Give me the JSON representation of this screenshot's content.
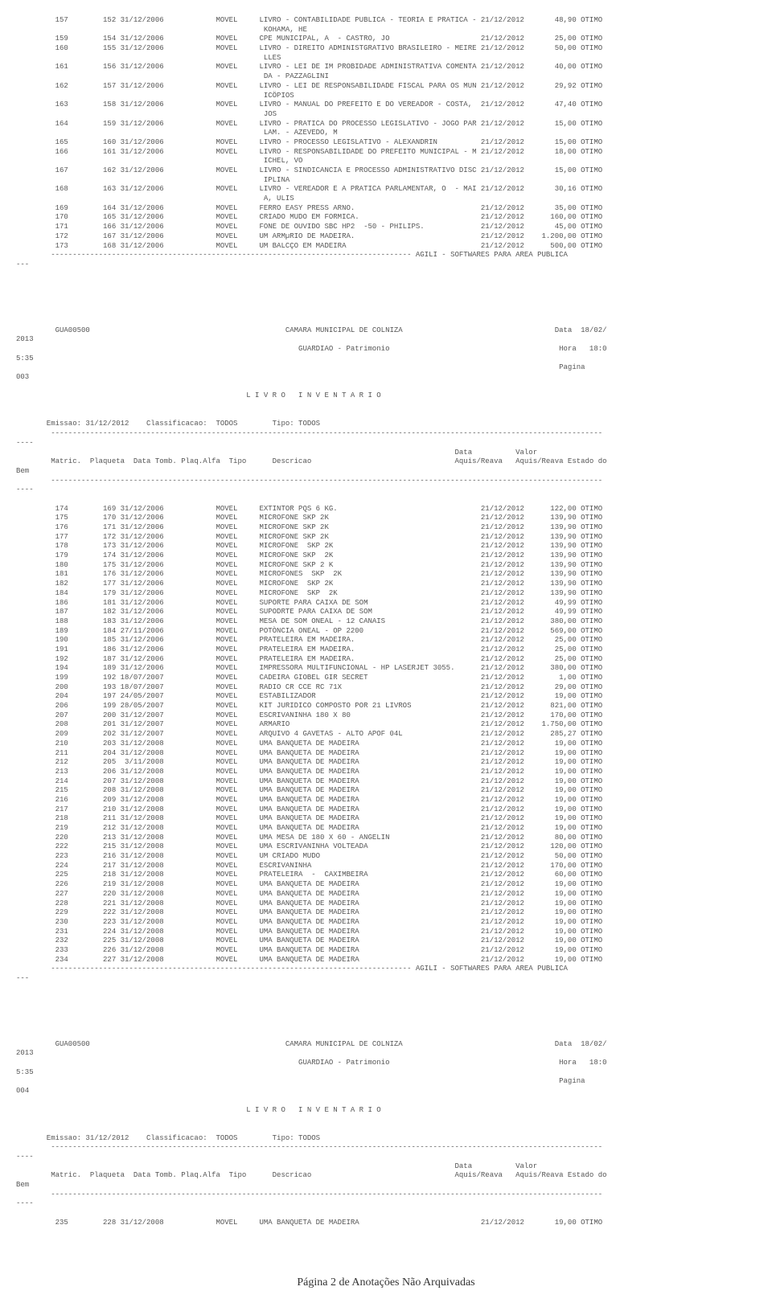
{
  "dashLong": "        -------------------------------------------------------------------------------------------------------------------------------",
  "agiliLine": "        ----------------------------------------------------------------------------------- AGILI - SOFTWARES PARA AREA PUBLICA",
  "hdr": {
    "gua": "         GUA00500                                             CAMARA MUNICIPAL DE COLNIZA                                   Data  18/02/",
    "year": "2013",
    "guardiao": "                                                                 GUARDIAO - Patrimonio                                       Hora   18:0",
    "time": "5:35",
    "page3": "                                                                                                                             Pagina     ",
    "pg003": "003",
    "pg004": "004",
    "livro": "                                                     L I V R O   I N V E N T A R I O",
    "emissao": "       Emissao: 31/12/2012    Classificacao:  TODOS        Tipo: TODOS",
    "colh1": "                                                                                                     Data          Valor",
    "colh2": "        Matric.  Plaqueta  Data Tomb. Plaq.Alfa  Tipo      Descricao                                 Aquis/Reava   Aquis/Reava Estado do",
    "bem": "Bem"
  },
  "dashShort": "----",
  "dashTriple": "---",
  "rows1": [
    "         157        152 31/12/2006            MOVEL     LIVRO - CONTABILIDADE PUBLICA - TEORIA E PRATICA - 21/12/2012       48,90 OTIMO",
    "                                                         KOHAMA, HE",
    "         159        154 31/12/2006            MOVEL     CPE MUNICIPAL, A  - CASTRO, JO                     21/12/2012       25,00 OTIMO",
    "         160        155 31/12/2006            MOVEL     LIVRO - DIREITO ADMINISTGRATIVO BRASILEIRO - MEIRE 21/12/2012       50,00 OTIMO",
    "                                                         LLES",
    "         161        156 31/12/2006            MOVEL     LIVRO - LEI DE IM PROBIDADE ADMINISTRATIVA COMENTA 21/12/2012       40,00 OTIMO",
    "                                                         DA - PAZZAGLINI",
    "         162        157 31/12/2006            MOVEL     LIVRO - LEI DE RESPONSABILIDADE FISCAL PARA OS MUN 21/12/2012       29,92 OTIMO",
    "                                                         ICÖPIOS",
    "         163        158 31/12/2006            MOVEL     LIVRO - MANUAL DO PREFEITO E DO VEREADOR - COSTA,  21/12/2012       47,40 OTIMO",
    "                                                         JOS",
    "         164        159 31/12/2006            MOVEL     LIVRO - PRATICA DO PROCESSO LEGISLATIVO - JOGO PAR 21/12/2012       15,00 OTIMO",
    "                                                         LAM. - AZEVEDO, M",
    "         165        160 31/12/2006            MOVEL     LIVRO - PROCESSO LEGISLATIVO - ALEXANDRIN          21/12/2012       15,00 OTIMO",
    "         166        161 31/12/2006            MOVEL     LIVRO - RESPONSABILIDADE DO PREFEITO MUNICIPAL - M 21/12/2012       18,00 OTIMO",
    "                                                         ICHEL, VO",
    "         167        162 31/12/2006            MOVEL     LIVRO - SINDICANCIA E PROCESSO ADMINISTRATIVO DISC 21/12/2012       15,00 OTIMO",
    "                                                         IPLINA",
    "         168        163 31/12/2006            MOVEL     LIVRO - VEREADOR E A PRATICA PARLAMENTAR, O  - MAI 21/12/2012       30,16 OTIMO",
    "                                                         A, ULIS",
    "         169        164 31/12/2006            MOVEL     FERRO EASY PRESS ARNO.                             21/12/2012       35,00 OTIMO",
    "         170        165 31/12/2006            MOVEL     CRIADO MUDO EM FORMICA.                            21/12/2012      160,00 OTIMO",
    "         171        166 31/12/2006            MOVEL     FONE DE OUVIDO SBC HP2  -50 - PHILIPS.             21/12/2012       45,00 OTIMO",
    "         172        167 31/12/2006            MOVEL     UM ARMµRIO DE MADEIRA.                             21/12/2012    1.200,00 OTIMO",
    "         173        168 31/12/2006            MOVEL     UM BALCÇO EM MADEIRA                               21/12/2012      500,00 OTIMO"
  ],
  "rows2": [
    "         174        169 31/12/2006            MOVEL     EXTINTOR PQS 6 KG.                                 21/12/2012      122,00 OTIMO",
    "         175        170 31/12/2006            MOVEL     MICROFONE SKP 2K                                   21/12/2012      139,90 OTIMO",
    "         176        171 31/12/2006            MOVEL     MICROFONE SKP 2K                                   21/12/2012      139,90 OTIMO",
    "         177        172 31/12/2006            MOVEL     MICROFONE SKP 2K                                   21/12/2012      139,90 OTIMO",
    "         178        173 31/12/2006            MOVEL     MICROFONE  SKP 2K                                  21/12/2012      139,90 OTIMO",
    "         179        174 31/12/2006            MOVEL     MICROFONE SKP  2K                                  21/12/2012      139,90 OTIMO",
    "         180        175 31/12/2006            MOVEL     MICROFONE SKP 2 K                                  21/12/2012      139,90 OTIMO",
    "         181        176 31/12/2006            MOVEL     MICROFONES  SKP  2K                                21/12/2012      139,90 OTIMO",
    "         182        177 31/12/2006            MOVEL     MICROFONE  SKP 2K                                  21/12/2012      139,90 OTIMO",
    "         184        179 31/12/2006            MOVEL     MICROFONE  SKP  2K                                 21/12/2012      139,90 OTIMO",
    "         186        181 31/12/2006            MOVEL     SUPORTE PARA CAIXA DE SOM                          21/12/2012       49,99 OTIMO",
    "         187        182 31/12/2006            MOVEL     SUPODRTE PARA CAIXA DE SOM                         21/12/2012       49,99 OTIMO",
    "         188        183 31/12/2006            MOVEL     MESA DE SOM ONEAL - 12 CANAIS                      21/12/2012      380,00 OTIMO",
    "         189        184 27/11/2006            MOVEL     POTÒNCIA ONEAL - OP 2200                           21/12/2012      569,00 OTIMO",
    "         190        185 31/12/2006            MOVEL     PRATELEIRA EM MADEIRA.                             21/12/2012       25,00 OTIMO",
    "         191        186 31/12/2006            MOVEL     PRATELEIRA EM MADEIRA.                             21/12/2012       25,00 OTIMO",
    "         192        187 31/12/2006            MOVEL     PRATELEIRA EM MADEIRA.                             21/12/2012       25,00 OTIMO",
    "         194        189 31/12/2006            MOVEL     IMPRESSORA MULTIFUNCIONAL - HP LASERJET 3055.      21/12/2012      380,00 OTIMO",
    "         199        192 18/07/2007            MOVEL     CADEIRA GIOBEL GIR SECRET                          21/12/2012        1,00 OTIMO",
    "         200        193 18/07/2007            MOVEL     RADIO CR CCE RC 71X                                21/12/2012       29,00 OTIMO",
    "         204        197 24/05/2007            MOVEL     ESTABILIZADOR                                      21/12/2012       19,00 OTIMO",
    "         206        199 28/05/2007            MOVEL     KIT JURIDICO COMPOSTO POR 21 LIVROS                21/12/2012      821,00 OTIMO",
    "         207        200 31/12/2007            MOVEL     ESCRIVANINHA 180 X 80                              21/12/2012      170,00 OTIMO",
    "         208        201 31/12/2007            MOVEL     ARMARIO                                            21/12/2012    1.750,00 OTIMO",
    "         209        202 31/12/2007            MOVEL     ARQUIVO 4 GAVETAS - ALTO APOF 04L                  21/12/2012      285,27 OTIMO",
    "         210        203 31/12/2008            MOVEL     UMA BANQUETA DE MADEIRA                            21/12/2012       19,00 OTIMO",
    "         211        204 31/12/2008            MOVEL     UMA BANQUETA DE MADEIRA                            21/12/2012       19,00 OTIMO",
    "         212        205  3/11/2008            MOVEL     UMA BANQUETA DE MADEIRA                            21/12/2012       19,00 OTIMO",
    "         213        206 31/12/2008            MOVEL     UMA BANQUETA DE MADEIRA                            21/12/2012       19,00 OTIMO",
    "         214        207 31/12/2008            MOVEL     UMA BANQUETA DE MADEIRA                            21/12/2012       19,00 OTIMO",
    "         215        208 31/12/2008            MOVEL     UMA BANQUETA DE MADEIRA                            21/12/2012       19,00 OTIMO",
    "         216        209 31/12/2008            MOVEL     UMA BANQUETA DE MADEIRA                            21/12/2012       19,00 OTIMO",
    "         217        210 31/12/2008            MOVEL     UMA BANQUETA DE MADEIRA                            21/12/2012       19,00 OTIMO",
    "         218        211 31/12/2008            MOVEL     UMA BANQUETA DE MADEIRA                            21/12/2012       19,00 OTIMO",
    "         219        212 31/12/2008            MOVEL     UMA BANQUETA DE MADEIRA                            21/12/2012       19,00 OTIMO",
    "         220        213 31/12/2008            MOVEL     UMA MESA DE 180 X 60 - ANGELIN                     21/12/2012       80,00 OTIMO",
    "         222        215 31/12/2008            MOVEL     UMA ESCRIVANINHA VOLTEADA                          21/12/2012      120,00 OTIMO",
    "         223        216 31/12/2008            MOVEL     UM CRIADO MUDO                                     21/12/2012       50,00 OTIMO",
    "         224        217 31/12/2008            MOVEL     ESCRIVANINHA                                       21/12/2012      170,00 OTIMO",
    "         225        218 31/12/2008            MOVEL     PRATELEIRA  -  CAXIMBEIRA                          21/12/2012       60,00 OTIMO",
    "         226        219 31/12/2008            MOVEL     UMA BANQUETA DE MADEIRA                            21/12/2012       19,00 OTIMO",
    "         227        220 31/12/2008            MOVEL     UMA BANQUETA DE MADEIRA                            21/12/2012       19,00 OTIMO",
    "         228        221 31/12/2008            MOVEL     UMA BANQUETA DE MADEIRA                            21/12/2012       19,00 OTIMO",
    "         229        222 31/12/2008            MOVEL     UMA BANQUETA DE MADEIRA                            21/12/2012       19,00 OTIMO",
    "         230        223 31/12/2008            MOVEL     UMA BANQUETA DE MADEIRA                            21/12/2012       19,00 OTIMO",
    "         231        224 31/12/2008            MOVEL     UMA BANQUETA DE MADEIRA                            21/12/2012       19,00 OTIMO",
    "         232        225 31/12/2008            MOVEL     UMA BANQUETA DE MADEIRA                            21/12/2012       19,00 OTIMO",
    "         233        226 31/12/2008            MOVEL     UMA BANQUETA DE MADEIRA                            21/12/2012       19,00 OTIMO",
    "         234        227 31/12/2008            MOVEL     UMA BANQUETA DE MADEIRA                            21/12/2012       19,00 OTIMO"
  ],
  "rows3": [
    "         235        228 31/12/2008            MOVEL     UMA BANQUETA DE MADEIRA                            21/12/2012       19,00 OTIMO"
  ],
  "footer": "Página 2 de Anotações Não Arquivadas"
}
